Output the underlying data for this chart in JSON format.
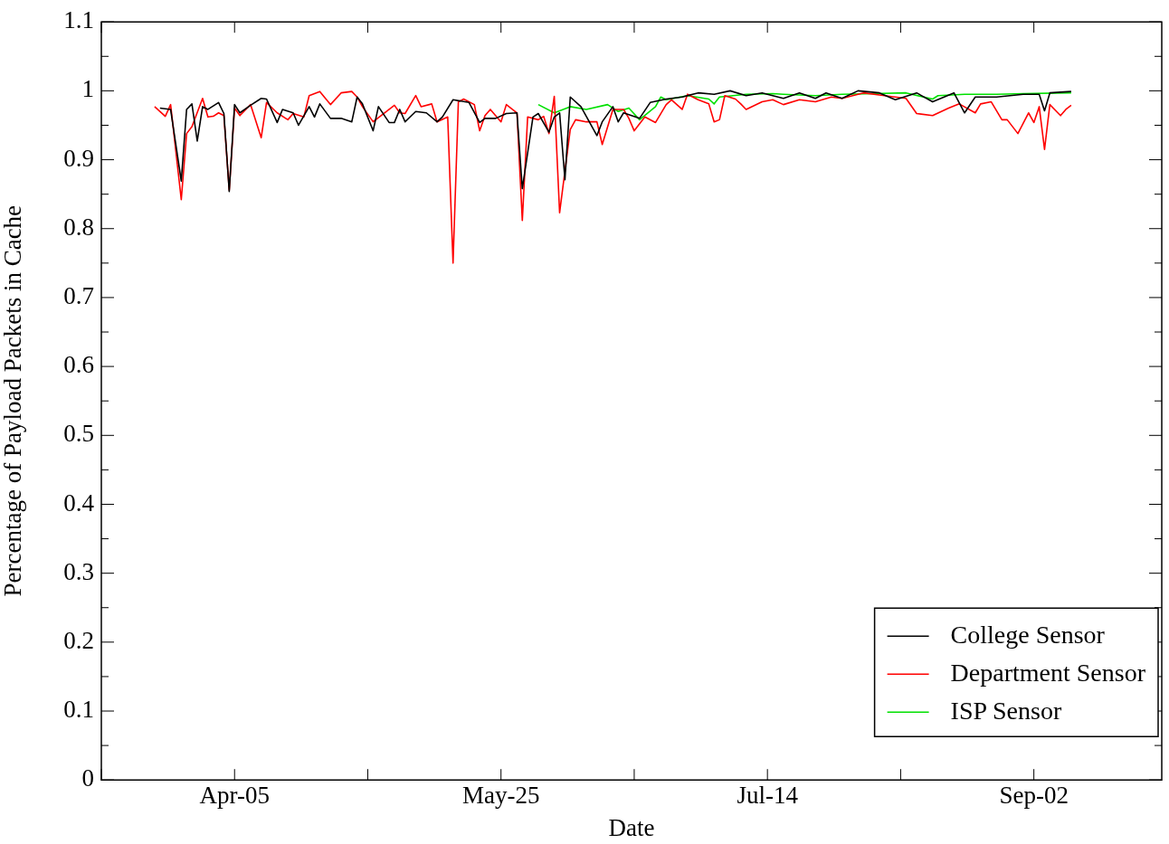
{
  "chart_data": {
    "type": "line",
    "xlabel": "Date",
    "ylabel": "Percentage of Payload Packets in Cache",
    "xlim": [
      "--03-11",
      "--09-26"
    ],
    "xticks": [
      {
        "value": "--03-11",
        "label": null
      },
      {
        "value": "--04-05",
        "label": "Apr-05"
      },
      {
        "value": "--04-30",
        "label": null
      },
      {
        "value": "--05-25",
        "label": "May-25"
      },
      {
        "value": "--06-19",
        "label": null
      },
      {
        "value": "--07-14",
        "label": "Jul-14"
      },
      {
        "value": "--08-08",
        "label": null
      },
      {
        "value": "--09-02",
        "label": "Sep-02"
      }
    ],
    "ylim": [
      0,
      1.1
    ],
    "yticks": [
      0,
      {
        "value": 0.05,
        "label": null
      },
      0.1,
      {
        "value": 0.15,
        "label": null
      },
      0.2,
      {
        "value": 0.25,
        "label": null
      },
      0.3,
      {
        "value": 0.35,
        "label": null
      },
      0.4,
      {
        "value": 0.45,
        "label": null
      },
      0.5,
      {
        "value": 0.55,
        "label": null
      },
      0.6,
      {
        "value": 0.65,
        "label": null
      },
      0.7,
      {
        "value": 0.75,
        "label": null
      },
      0.8,
      {
        "value": 0.85,
        "label": null
      },
      0.9,
      {
        "value": 0.95,
        "label": null
      },
      1,
      {
        "value": 1.05,
        "label": null
      },
      1.1
    ],
    "grid": false,
    "legend": "bottom right",
    "marker": "none",
    "line_style": "solid",
    "series": [
      {
        "name": "College Sensor",
        "color": "#000000",
        "x": [
          "--03-22",
          "--03-24",
          "--03-26",
          "--03-27",
          "--03-28",
          "--03-29",
          "--03-30",
          "--03-31",
          "--04-02",
          "--04-03",
          "--04-04",
          "--04-05",
          "--04-06",
          "--04-08",
          "--04-10",
          "--04-11",
          "--04-13",
          "--04-14",
          "--04-16",
          "--04-17",
          "--04-19",
          "--04-20",
          "--04-21",
          "--04-23",
          "--04-25",
          "--04-27",
          "--04-28",
          "--04-29",
          "--05-01",
          "--05-02",
          "--05-04",
          "--05-05",
          "--05-06",
          "--05-07",
          "--05-09",
          "--05-11",
          "--05-13",
          "--05-14",
          "--05-16",
          "--05-19",
          "--05-21",
          "--05-22",
          "--05-24",
          "--05-26",
          "--05-28",
          "--05-29",
          "--05-31",
          "--06-01",
          "--06-03",
          "--06-04",
          "--06-05",
          "--06-06",
          "--06-07",
          "--06-09",
          "--06-12",
          "--06-13",
          "--06-15",
          "--06-16",
          "--06-17",
          "--06-20",
          "--06-22",
          "--06-25",
          "--06-28",
          "--07-01",
          "--07-04",
          "--07-07",
          "--07-10",
          "--07-13",
          "--07-17",
          "--07-20",
          "--07-23",
          "--07-25",
          "--07-28",
          "--07-31",
          "--08-04",
          "--08-07",
          "--08-11",
          "--08-14",
          "--08-18",
          "--08-20",
          "--08-22",
          "--08-26",
          "--08-31",
          "--09-03",
          "--09-04",
          "--09-05",
          "--09-09"
        ],
        "values": [
          0.975,
          0.973,
          0.869,
          0.973,
          0.981,
          0.927,
          0.977,
          0.973,
          0.983,
          0.967,
          0.854,
          0.98,
          0.968,
          0.979,
          0.989,
          0.988,
          0.954,
          0.973,
          0.968,
          0.95,
          0.977,
          0.962,
          0.981,
          0.96,
          0.96,
          0.955,
          0.991,
          0.981,
          0.942,
          0.977,
          0.954,
          0.954,
          0.973,
          0.955,
          0.97,
          0.968,
          0.955,
          0.962,
          0.987,
          0.983,
          0.954,
          0.96,
          0.96,
          0.967,
          0.968,
          0.858,
          0.962,
          0.967,
          0.94,
          0.962,
          0.968,
          0.871,
          0.991,
          0.977,
          0.935,
          0.955,
          0.977,
          0.955,
          0.968,
          0.96,
          0.983,
          0.988,
          0.991,
          0.997,
          0.995,
          1.0,
          0.993,
          0.997,
          0.989,
          0.997,
          0.989,
          0.997,
          0.989,
          1.0,
          0.997,
          0.987,
          0.997,
          0.984,
          0.997,
          0.968,
          0.991,
          0.991,
          0.995,
          0.995,
          0.971,
          0.997,
          0.999
        ]
      },
      {
        "name": "Department Sensor",
        "color": "#ff0000",
        "x": [
          "--03-21",
          "--03-23",
          "--03-24",
          "--03-26",
          "--03-27",
          "--03-28",
          "--03-30",
          "--03-31",
          "--04-01",
          "--04-02",
          "--04-03",
          "--04-04",
          "--04-05",
          "--04-06",
          "--04-08",
          "--04-10",
          "--04-11",
          "--04-13",
          "--04-15",
          "--04-16",
          "--04-18",
          "--04-19",
          "--04-21",
          "--04-23",
          "--04-25",
          "--04-27",
          "--04-28",
          "--04-29",
          "--05-01",
          "--05-05",
          "--05-06",
          "--05-07",
          "--05-09",
          "--05-10",
          "--05-12",
          "--05-13",
          "--05-15",
          "--05-16",
          "--05-17",
          "--05-18",
          "--05-20",
          "--05-21",
          "--05-22",
          "--05-23",
          "--05-25",
          "--05-26",
          "--05-28",
          "--05-29",
          "--05-30",
          "--06-01",
          "--06-02",
          "--06-03",
          "--06-04",
          "--06-05",
          "--06-07",
          "--06-08",
          "--06-10",
          "--06-12",
          "--06-13",
          "--06-15",
          "--06-17",
          "--06-18",
          "--06-19",
          "--06-21",
          "--06-23",
          "--06-25",
          "--06-26",
          "--06-28",
          "--06-29",
          "--07-01",
          "--07-03",
          "--07-04",
          "--07-05",
          "--07-06",
          "--07-08",
          "--07-09",
          "--07-10",
          "--07-13",
          "--07-15",
          "--07-17",
          "--07-20",
          "--07-23",
          "--07-26",
          "--07-28",
          "--08-01",
          "--08-05",
          "--08-09",
          "--08-11",
          "--08-14",
          "--08-17",
          "--08-19",
          "--08-22",
          "--08-23",
          "--08-25",
          "--08-27",
          "--08-28",
          "--08-30",
          "--09-01",
          "--09-02",
          "--09-03",
          "--09-04",
          "--09-05",
          "--09-07",
          "--09-08",
          "--09-09"
        ],
        "values": [
          0.977,
          0.963,
          0.98,
          0.842,
          0.938,
          0.948,
          0.989,
          0.962,
          0.963,
          0.968,
          0.964,
          0.856,
          0.975,
          0.964,
          0.98,
          0.932,
          0.983,
          0.968,
          0.958,
          0.967,
          0.962,
          0.993,
          0.999,
          0.98,
          0.997,
          0.999,
          0.991,
          0.977,
          0.955,
          0.979,
          0.968,
          0.967,
          0.993,
          0.977,
          0.981,
          0.955,
          0.962,
          0.75,
          0.984,
          0.988,
          0.98,
          0.942,
          0.964,
          0.973,
          0.955,
          0.98,
          0.968,
          0.812,
          0.962,
          0.958,
          0.963,
          0.938,
          0.992,
          0.823,
          0.944,
          0.958,
          0.955,
          0.955,
          0.922,
          0.973,
          0.973,
          0.96,
          0.942,
          0.962,
          0.954,
          0.98,
          0.987,
          0.973,
          0.995,
          0.987,
          0.981,
          0.955,
          0.958,
          0.993,
          0.988,
          0.981,
          0.973,
          0.984,
          0.987,
          0.98,
          0.987,
          0.984,
          0.991,
          0.989,
          0.997,
          0.993,
          0.989,
          0.967,
          0.964,
          0.975,
          0.981,
          0.968,
          0.981,
          0.984,
          0.958,
          0.958,
          0.938,
          0.968,
          0.954,
          0.977,
          0.915,
          0.98,
          0.964,
          0.973,
          0.979
        ]
      },
      {
        "name": "ISP Sensor",
        "color": "#00e000",
        "x": [
          "--06-01",
          "--06-04",
          "--06-07",
          "--06-10",
          "--06-14",
          "--06-16",
          "--06-18",
          "--06-20",
          "--06-23",
          "--06-24",
          "--06-25",
          "--06-29",
          "--07-03",
          "--07-04",
          "--07-05",
          "--07-10",
          "--07-15",
          "--07-17",
          "--07-23",
          "--07-28",
          "--08-03",
          "--08-09",
          "--08-14",
          "--08-15",
          "--08-20",
          "--08-26",
          "--08-31",
          "--09-09"
        ],
        "values": [
          0.98,
          0.968,
          0.977,
          0.973,
          0.98,
          0.97,
          0.975,
          0.958,
          0.977,
          0.991,
          0.987,
          0.993,
          0.988,
          0.981,
          0.991,
          0.995,
          0.996,
          0.995,
          0.993,
          0.995,
          0.996,
          0.997,
          0.988,
          0.993,
          0.995,
          0.995,
          0.996,
          0.997
        ]
      }
    ]
  }
}
